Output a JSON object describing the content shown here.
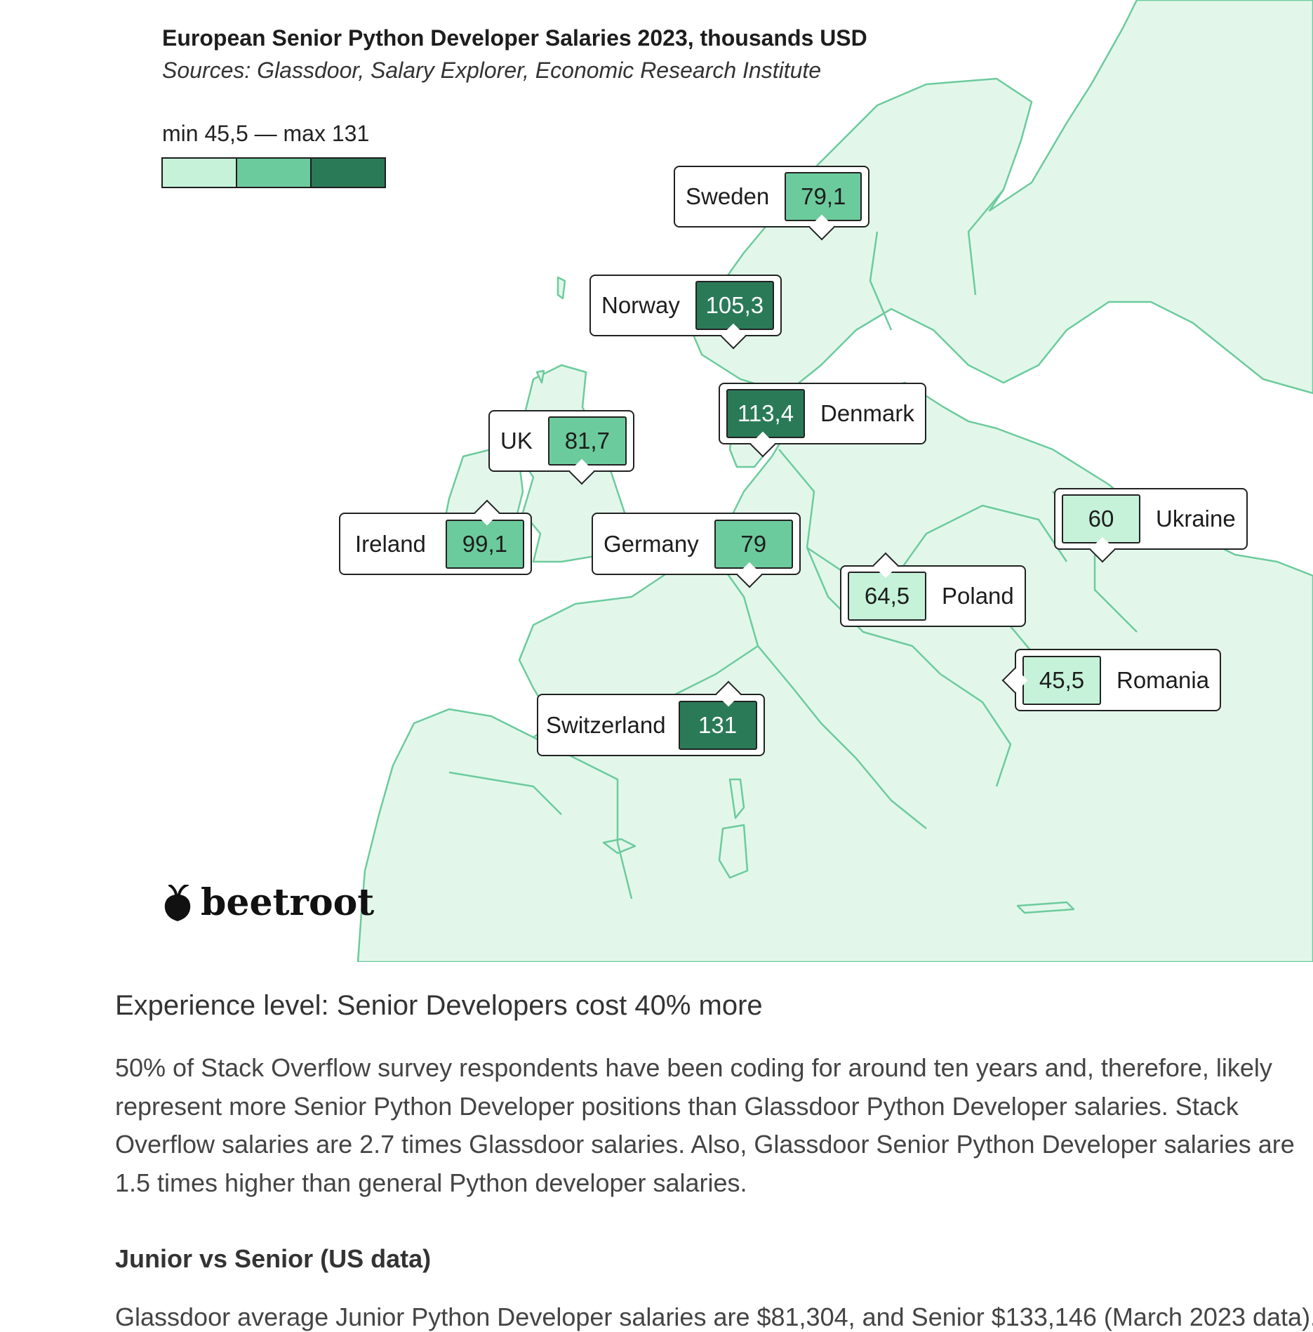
{
  "map": {
    "title": "European Senior Python Developer Salaries 2023, thousands USD",
    "subtitle": "Sources: Glassdoor, Salary Explorer, Economic Research Institute",
    "legend": {
      "label": "min 45,5 — max 131",
      "colors": [
        "#c5f2d9",
        "#6ccb9d",
        "#2a7a58"
      ]
    },
    "land_color": "#e2f7ea",
    "border_color": "#6ccb9d",
    "countries": [
      {
        "name": "Sweden",
        "value": 79.1,
        "value_label": "79,1",
        "tier": 1
      },
      {
        "name": "Norway",
        "value": 105.3,
        "value_label": "105,3",
        "tier": 2
      },
      {
        "name": "Denmark",
        "value": 113.4,
        "value_label": "113,4",
        "tier": 2
      },
      {
        "name": "UK",
        "value": 81.7,
        "value_label": "81,7",
        "tier": 1
      },
      {
        "name": "Ireland",
        "value": 99.1,
        "value_label": "99,1",
        "tier": 1
      },
      {
        "name": "Germany",
        "value": 79,
        "value_label": "79",
        "tier": 1
      },
      {
        "name": "Ukraine",
        "value": 60,
        "value_label": "60",
        "tier": 0
      },
      {
        "name": "Poland",
        "value": 64.5,
        "value_label": "64,5",
        "tier": 0
      },
      {
        "name": "Romania",
        "value": 45.5,
        "value_label": "45,5",
        "tier": 0
      },
      {
        "name": "Switzerland",
        "value": 131,
        "value_label": "131",
        "tier": 2
      }
    ],
    "logo": "beetroot"
  },
  "article": {
    "heading": "Experience level: Senior Developers cost 40% more",
    "paragraph": "50% of Stack Overflow survey respondents have been coding for around ten years and, therefore, likely represent more Senior Python Developer positions than Glassdoor Python Developer salaries. Stack Overflow salaries are 2.7 times Glassdoor salaries. Also, Glassdoor Senior Python Developer salaries are 1.5 times higher than general Python developer salaries.",
    "subheading": "Junior vs Senior (US data)",
    "paragraph2": "Glassdoor average Junior Python Developer salaries are $81,304, and Senior $133,146 (March 2023 data)."
  }
}
